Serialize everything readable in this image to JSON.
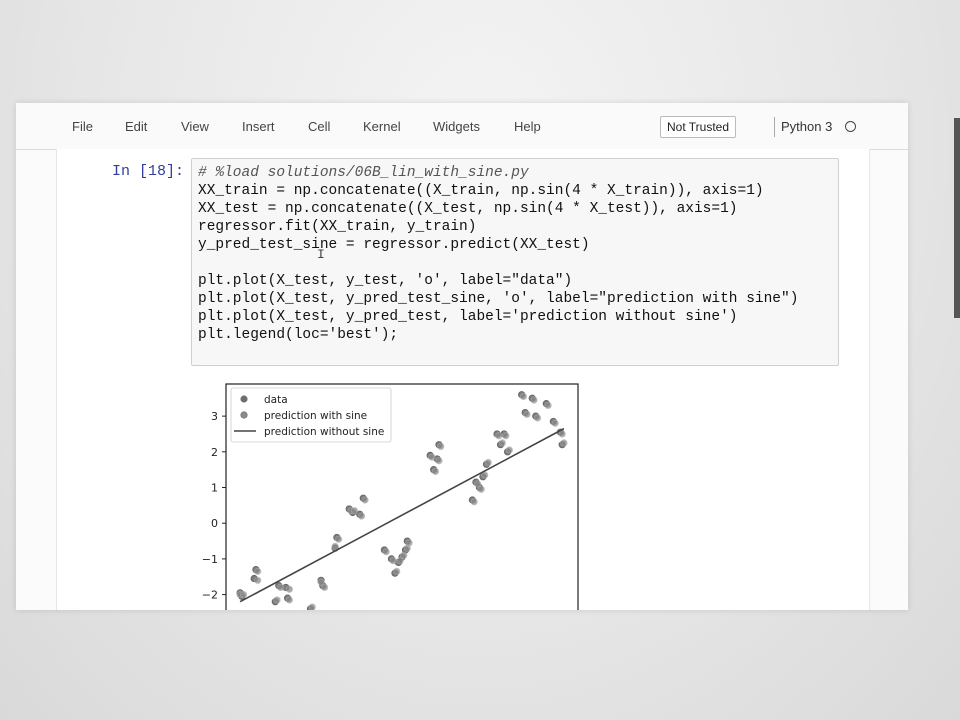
{
  "menu": {
    "items": [
      "File",
      "Edit",
      "View",
      "Insert",
      "Cell",
      "Kernel",
      "Widgets",
      "Help"
    ],
    "trust_label": "Not Trusted",
    "kernel_name": "Python 3"
  },
  "cell": {
    "prompt": "In [18]:",
    "comment": "# %load solutions/06B_lin_with_sine.py",
    "lines": [
      "XX_train = np.concatenate((X_train, np.sin(4 * X_train)), axis=1)",
      "XX_test = np.concatenate((X_test, np.sin(4 * X_test)), axis=1)",
      "regressor.fit(XX_train, y_train)",
      "y_pred_test_sine = regressor.predict(XX_test)",
      "",
      "plt.plot(X_test, y_test, 'o', label=\"data\")",
      "plt.plot(X_test, y_pred_test_sine, 'o', label=\"prediction with sine\")",
      "plt.plot(X_test, y_pred_test, label='prediction without sine')",
      "plt.legend(loc='best');"
    ]
  },
  "cursor_glyph": "I",
  "chart_data": {
    "type": "scatter",
    "ylim": [
      -2.6,
      3.9
    ],
    "xlim": [
      0,
      1
    ],
    "yticks": [
      "3",
      "2",
      "1",
      "0",
      "−1",
      "−2"
    ],
    "ytick_values": [
      3,
      2,
      1,
      0,
      -1,
      -2
    ],
    "legend_position": "top-left",
    "series": [
      {
        "name": "data",
        "kind": "points",
        "points": [
          [
            0.04,
            -1.95
          ],
          [
            0.045,
            -2.05
          ],
          [
            0.08,
            -1.55
          ],
          [
            0.085,
            -1.3
          ],
          [
            0.14,
            -2.2
          ],
          [
            0.15,
            -1.75
          ],
          [
            0.17,
            -1.8
          ],
          [
            0.175,
            -2.1
          ],
          [
            0.24,
            -2.4
          ],
          [
            0.27,
            -1.6
          ],
          [
            0.275,
            -1.75
          ],
          [
            0.31,
            -0.7
          ],
          [
            0.315,
            -0.4
          ],
          [
            0.35,
            0.4
          ],
          [
            0.36,
            0.3
          ],
          [
            0.38,
            0.25
          ],
          [
            0.39,
            0.7
          ],
          [
            0.45,
            -0.75
          ],
          [
            0.47,
            -1.0
          ],
          [
            0.48,
            -1.4
          ],
          [
            0.49,
            -1.1
          ],
          [
            0.5,
            -0.95
          ],
          [
            0.51,
            -0.75
          ],
          [
            0.515,
            -0.5
          ],
          [
            0.58,
            1.9
          ],
          [
            0.59,
            1.5
          ],
          [
            0.6,
            1.8
          ],
          [
            0.605,
            2.2
          ],
          [
            0.7,
            0.65
          ],
          [
            0.71,
            1.15
          ],
          [
            0.72,
            1.0
          ],
          [
            0.73,
            1.3
          ],
          [
            0.74,
            1.65
          ],
          [
            0.77,
            2.5
          ],
          [
            0.78,
            2.2
          ],
          [
            0.79,
            2.5
          ],
          [
            0.8,
            2.0
          ],
          [
            0.84,
            3.6
          ],
          [
            0.85,
            3.1
          ],
          [
            0.87,
            3.5
          ],
          [
            0.88,
            3.0
          ],
          [
            0.91,
            3.35
          ],
          [
            0.93,
            2.85
          ],
          [
            0.95,
            2.55
          ],
          [
            0.955,
            2.2
          ]
        ]
      },
      {
        "name": "prediction with sine",
        "kind": "points",
        "points": [
          [
            0.04,
            -2.0
          ],
          [
            0.05,
            -2.0
          ],
          [
            0.09,
            -1.6
          ],
          [
            0.09,
            -1.35
          ],
          [
            0.145,
            -2.15
          ],
          [
            0.155,
            -1.8
          ],
          [
            0.18,
            -1.85
          ],
          [
            0.18,
            -2.15
          ],
          [
            0.245,
            -2.35
          ],
          [
            0.27,
            -1.65
          ],
          [
            0.28,
            -1.8
          ],
          [
            0.31,
            -0.65
          ],
          [
            0.32,
            -0.45
          ],
          [
            0.355,
            0.35
          ],
          [
            0.365,
            0.35
          ],
          [
            0.385,
            0.2
          ],
          [
            0.395,
            0.65
          ],
          [
            0.455,
            -0.8
          ],
          [
            0.475,
            -1.05
          ],
          [
            0.485,
            -1.35
          ],
          [
            0.495,
            -1.05
          ],
          [
            0.505,
            -0.9
          ],
          [
            0.515,
            -0.7
          ],
          [
            0.52,
            -0.55
          ],
          [
            0.585,
            1.85
          ],
          [
            0.595,
            1.45
          ],
          [
            0.605,
            1.75
          ],
          [
            0.61,
            2.15
          ],
          [
            0.705,
            0.6
          ],
          [
            0.715,
            1.1
          ],
          [
            0.725,
            0.95
          ],
          [
            0.735,
            1.35
          ],
          [
            0.745,
            1.7
          ],
          [
            0.775,
            2.45
          ],
          [
            0.785,
            2.25
          ],
          [
            0.795,
            2.45
          ],
          [
            0.805,
            2.05
          ],
          [
            0.845,
            3.55
          ],
          [
            0.855,
            3.05
          ],
          [
            0.875,
            3.45
          ],
          [
            0.885,
            2.95
          ],
          [
            0.915,
            3.3
          ],
          [
            0.935,
            2.8
          ],
          [
            0.955,
            2.5
          ],
          [
            0.96,
            2.25
          ]
        ]
      },
      {
        "name": "prediction without sine",
        "kind": "line",
        "points": [
          [
            0.04,
            -2.2
          ],
          [
            0.96,
            2.65
          ]
        ]
      }
    ]
  },
  "colors": {
    "prompt": "#303f9f",
    "data_points": "#6d6d6d",
    "sine_points": "#8a8a8a",
    "line": "#444444"
  }
}
